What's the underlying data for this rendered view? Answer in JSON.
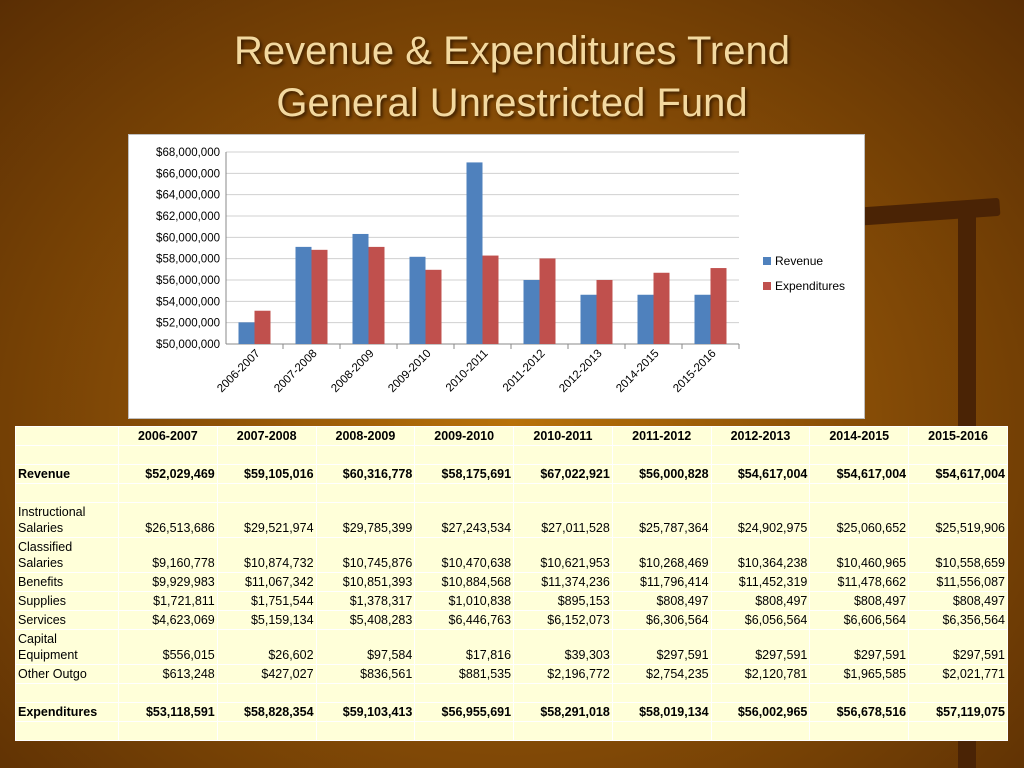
{
  "title_line1": "Revenue & Expenditures Trend",
  "title_line2": "General Unrestricted Fund",
  "chart_data": {
    "type": "bar",
    "categories": [
      "2006-2007",
      "2007-2008",
      "2008-2009",
      "2009-2010",
      "2010-2011",
      "2011-2012",
      "2012-2013",
      "2014-2015",
      "2015-2016"
    ],
    "series": [
      {
        "name": "Revenue",
        "color": "#4f81bd",
        "values": [
          52029469,
          59105016,
          60316778,
          58175691,
          67022921,
          56000828,
          54617004,
          54617004,
          54617004
        ]
      },
      {
        "name": "Expenditures",
        "color": "#c0504d",
        "values": [
          53118591,
          58828354,
          59103413,
          56955691,
          58291018,
          58019134,
          56002965,
          56678516,
          57119075
        ]
      }
    ],
    "ylim": [
      50000000,
      68000000
    ],
    "yticks": [
      "$50,000,000",
      "$52,000,000",
      "$54,000,000",
      "$56,000,000",
      "$58,000,000",
      "$60,000,000",
      "$62,000,000",
      "$64,000,000",
      "$66,000,000",
      "$68,000,000"
    ],
    "grid": true,
    "legend": "right"
  },
  "table": {
    "headers": [
      "",
      "2006-2007",
      "2007-2008",
      "2008-2009",
      "2009-2010",
      "2010-2011",
      "2011-2012",
      "2012-2013",
      "2014-2015",
      "2015-2016"
    ],
    "revenue": {
      "label": "Revenue",
      "values": [
        "$52,029,469",
        "$59,105,016",
        "$60,316,778",
        "$58,175,691",
        "$67,022,921",
        "$56,000,828",
        "$54,617,004",
        "$54,617,004",
        "$54,617,004"
      ]
    },
    "rows": [
      {
        "label": "Instructional Salaries",
        "values": [
          "$26,513,686",
          "$29,521,974",
          "$29,785,399",
          "$27,243,534",
          "$27,011,528",
          "$25,787,364",
          "$24,902,975",
          "$25,060,652",
          "$25,519,906"
        ]
      },
      {
        "label": "Classified Salaries",
        "values": [
          "$9,160,778",
          "$10,874,732",
          "$10,745,876",
          "$10,470,638",
          "$10,621,953",
          "$10,268,469",
          "$10,364,238",
          "$10,460,965",
          "$10,558,659"
        ]
      },
      {
        "label": "Benefits",
        "values": [
          "$9,929,983",
          "$11,067,342",
          "$10,851,393",
          "$10,884,568",
          "$11,374,236",
          "$11,796,414",
          "$11,452,319",
          "$11,478,662",
          "$11,556,087"
        ]
      },
      {
        "label": "Supplies",
        "values": [
          "$1,721,811",
          "$1,751,544",
          "$1,378,317",
          "$1,010,838",
          "$895,153",
          "$808,497",
          "$808,497",
          "$808,497",
          "$808,497"
        ]
      },
      {
        "label": "Services",
        "values": [
          "$4,623,069",
          "$5,159,134",
          "$5,408,283",
          "$6,446,763",
          "$6,152,073",
          "$6,306,564",
          "$6,056,564",
          "$6,606,564",
          "$6,356,564"
        ]
      },
      {
        "label": "Capital Equipment",
        "values": [
          "$556,015",
          "$26,602",
          "$97,584",
          "$17,816",
          "$39,303",
          "$297,591",
          "$297,591",
          "$297,591",
          "$297,591"
        ]
      },
      {
        "label": "Other Outgo",
        "values": [
          "$613,248",
          "$427,027",
          "$836,561",
          "$881,535",
          "$2,196,772",
          "$2,754,235",
          "$2,120,781",
          "$1,965,585",
          "$2,021,771"
        ]
      }
    ],
    "expenditures": {
      "label": "Expenditures",
      "values": [
        "$53,118,591",
        "$58,828,354",
        "$59,103,413",
        "$56,955,691",
        "$58,291,018",
        "$58,019,134",
        "$56,002,965",
        "$56,678,516",
        "$57,119,075"
      ]
    }
  }
}
